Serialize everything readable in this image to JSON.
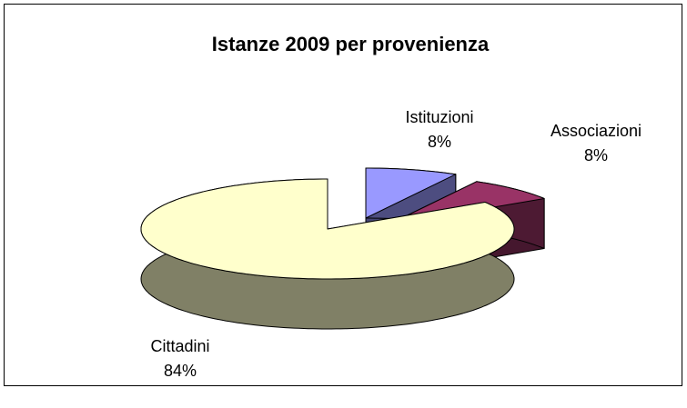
{
  "chart_data": {
    "type": "pie3d",
    "title": "Istanze 2009 per provenienza",
    "categories": [
      "Istituzioni",
      "Associazioni",
      "Cittadini"
    ],
    "values": [
      8,
      8,
      84
    ],
    "value_labels": [
      "8%",
      "8%",
      "84%"
    ],
    "colors": [
      "#9999ff",
      "#993366",
      "#ffffcc"
    ]
  }
}
